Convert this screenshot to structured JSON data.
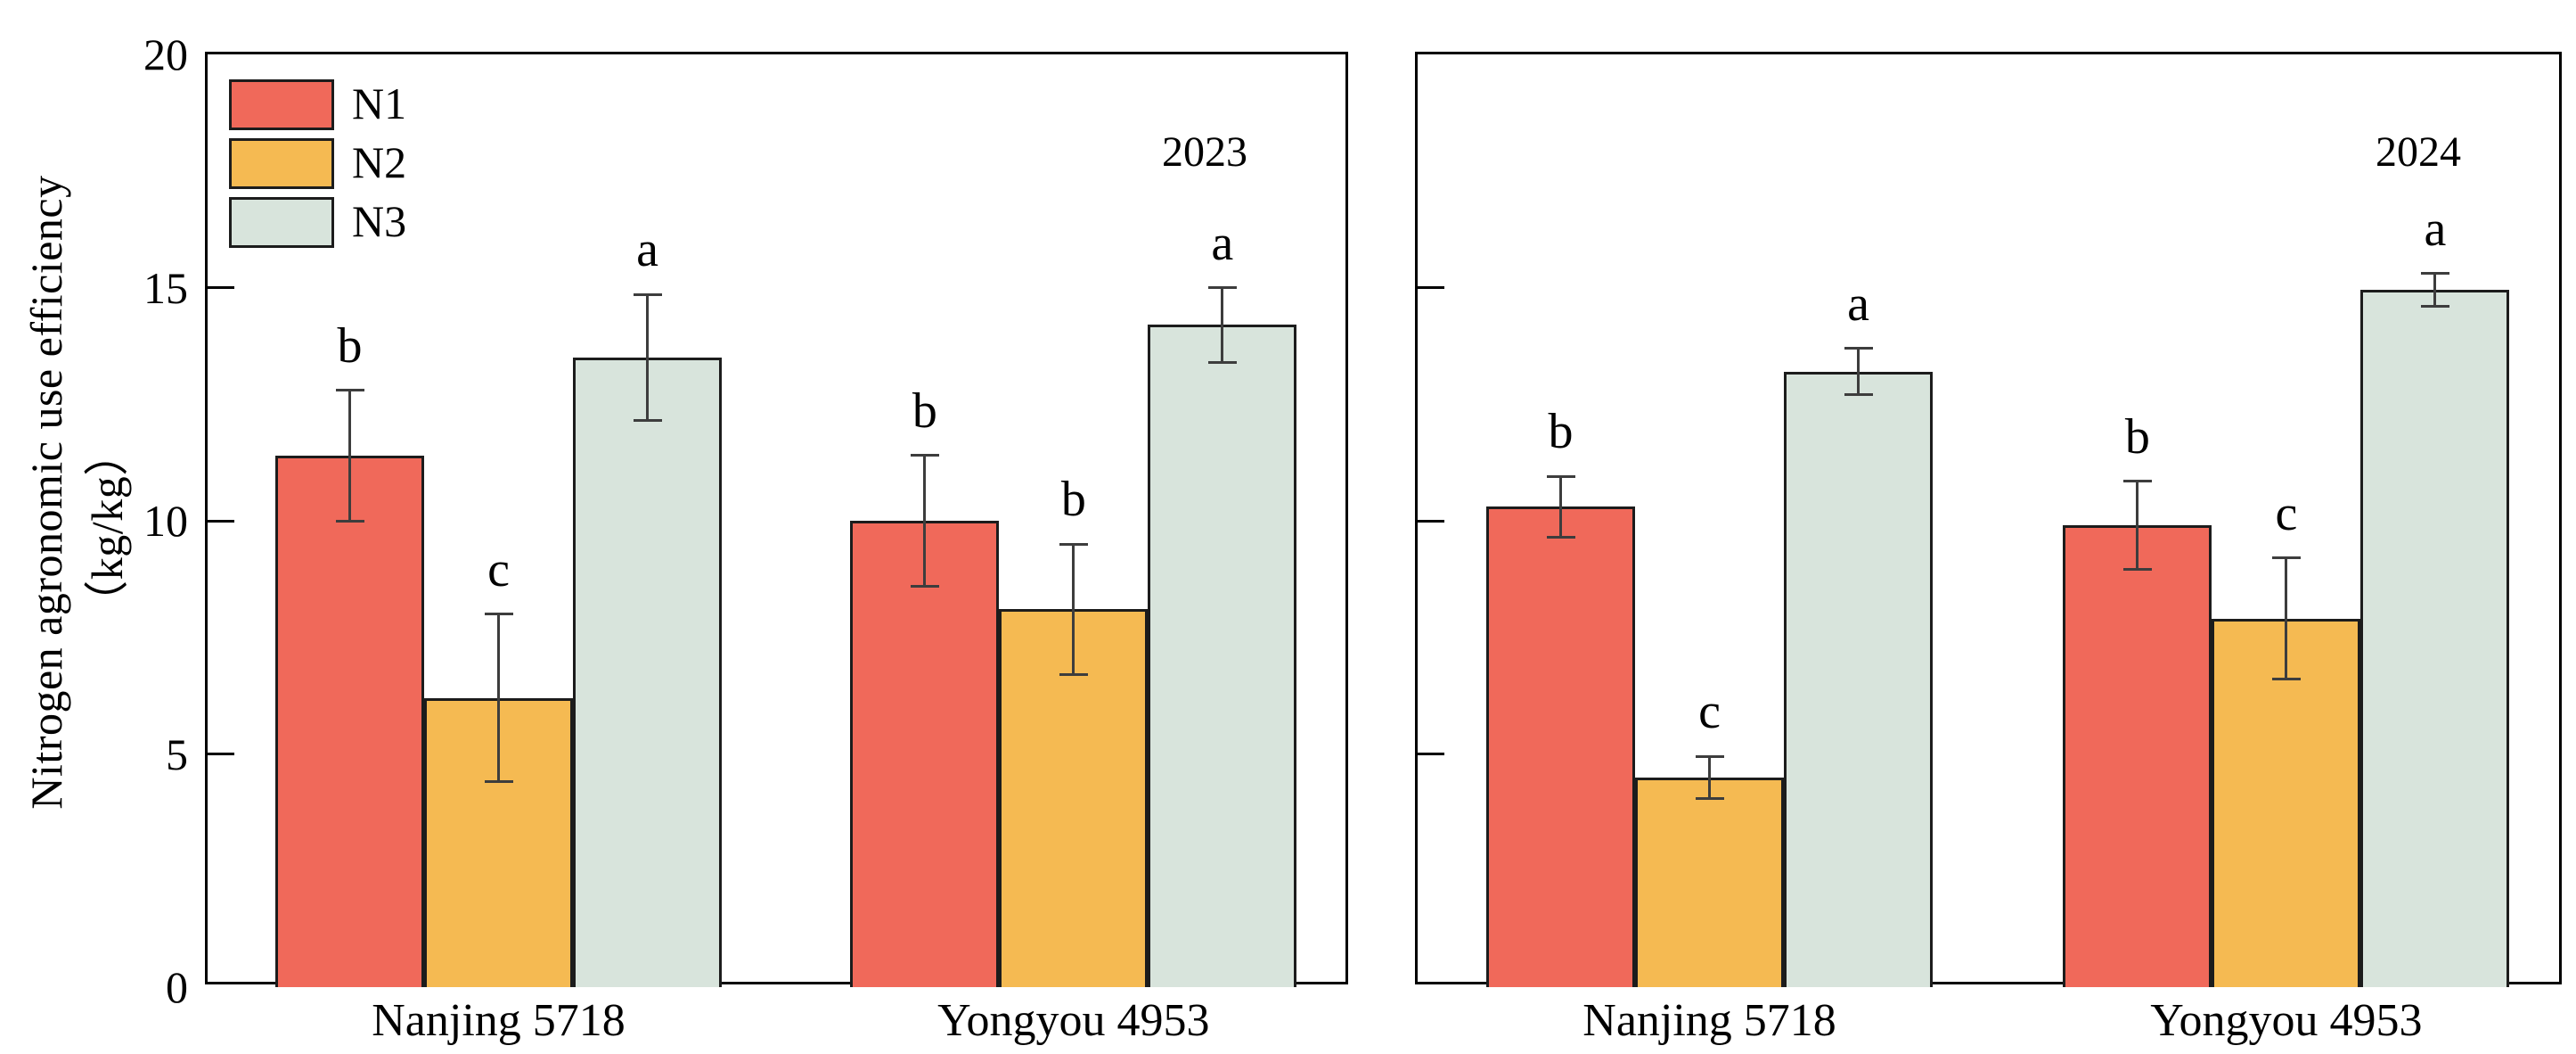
{
  "chart_data": [
    {
      "type": "bar",
      "title": "2023",
      "categories": [
        "Nanjing 5718",
        "Yongyou 4953"
      ],
      "series": [
        {
          "name": "N1",
          "color": "#f0695a",
          "values": [
            11.4,
            10.0
          ],
          "errors": [
            1.4,
            1.4
          ],
          "sig_letters": [
            "b",
            "b"
          ]
        },
        {
          "name": "N2",
          "color": "#f5ba52",
          "values": [
            6.2,
            8.1
          ],
          "errors": [
            1.8,
            1.4
          ],
          "sig_letters": [
            "c",
            "b"
          ]
        },
        {
          "name": "N3",
          "color": "#d8e4dc",
          "values": [
            13.5,
            14.2
          ],
          "errors": [
            1.35,
            0.8
          ],
          "sig_letters": [
            "a",
            "a"
          ]
        }
      ],
      "ylabel_line1": "Nitrogen agronomic use efficiency",
      "ylabel_line2": "（kg/kg）",
      "ylim": [
        0,
        20
      ],
      "yticks": [
        0,
        5,
        10,
        15,
        20
      ],
      "show_tick_labels": true,
      "legend_position": "top-left",
      "grid": false
    },
    {
      "type": "bar",
      "title": "2024",
      "categories": [
        "Nanjing 5718",
        "Yongyou 4953"
      ],
      "series": [
        {
          "name": "N1",
          "color": "#f0695a",
          "values": [
            10.3,
            9.9
          ],
          "errors": [
            0.65,
            0.95
          ],
          "sig_letters": [
            "b",
            "b"
          ]
        },
        {
          "name": "N2",
          "color": "#f5ba52",
          "values": [
            4.5,
            7.9
          ],
          "errors": [
            0.45,
            1.3
          ],
          "sig_letters": [
            "c",
            "c"
          ]
        },
        {
          "name": "N3",
          "color": "#d8e4dc",
          "values": [
            13.2,
            14.95
          ],
          "errors": [
            0.5,
            0.35
          ],
          "sig_letters": [
            "a",
            "a"
          ]
        }
      ],
      "ylabel_line1": "Nitrogen agronomic use efficiency",
      "ylabel_line2": "（kg/kg）",
      "ylim": [
        0,
        20
      ],
      "yticks": [
        0,
        5,
        10,
        15,
        20
      ],
      "show_tick_labels": false,
      "legend_position": "none",
      "grid": false
    }
  ]
}
